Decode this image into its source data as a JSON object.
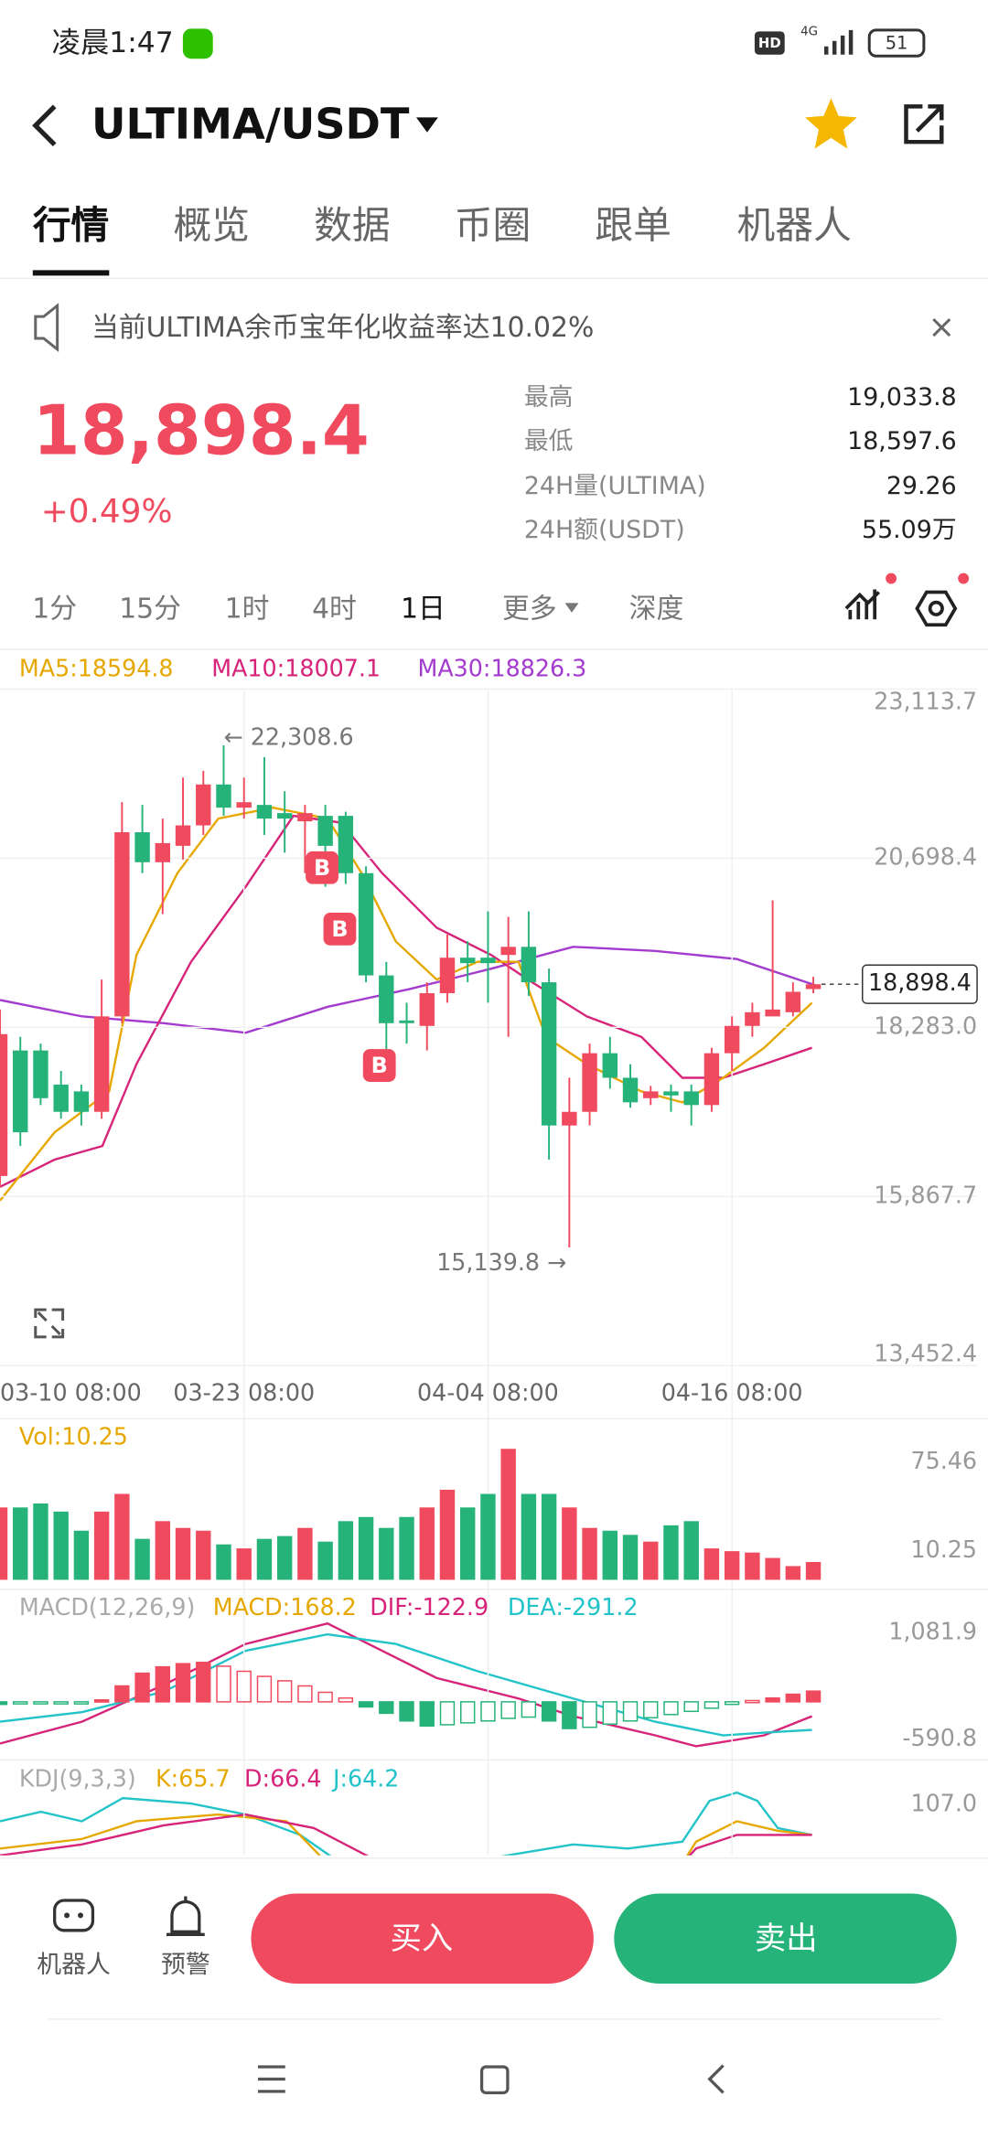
{
  "status": {
    "time": "凌晨1:47",
    "network": "4G",
    "badge": "HD",
    "battery": "51"
  },
  "header": {
    "pair": "ULTIMA/USDT"
  },
  "tabs": [
    "行情",
    "概览",
    "数据",
    "币圈",
    "跟单",
    "机器人"
  ],
  "notice": "当前ULTIMA余币宝年化收益率达10.02%",
  "ticker": {
    "price": "18,898.4",
    "change": "+0.49%",
    "stats": [
      {
        "label": "最高",
        "value": "19,033.8"
      },
      {
        "label": "最低",
        "value": "18,597.6"
      },
      {
        "label": "24H量(ULTIMA)",
        "value": "29.26"
      },
      {
        "label": "24H额(USDT)",
        "value": "55.09万"
      }
    ]
  },
  "intervals": [
    "1分",
    "15分",
    "1时",
    "4时",
    "1日",
    "更多",
    "深度"
  ],
  "chart_data": {
    "type": "candlestick",
    "up_color": "#f04a5e",
    "down_color": "#26b37a",
    "ma_legend": [
      {
        "text": "MA5:18594.8",
        "color": "#e6a800"
      },
      {
        "text": "MA10:18007.1",
        "color": "#d6247a"
      },
      {
        "text": "MA30:18826.3",
        "color": "#a43bcf"
      }
    ],
    "ylim": [
      13452.4,
      23113.7
    ],
    "yticks": [
      {
        "value": 23113.7,
        "label": "23,113.7"
      },
      {
        "value": 20698.4,
        "label": "20,698.4"
      },
      {
        "value": 18283.0,
        "label": "18,283.0"
      },
      {
        "value": 15867.7,
        "label": "15,867.7"
      },
      {
        "value": 13452.4,
        "label": "13,452.4"
      }
    ],
    "x_start_label": "03-10 08:00",
    "categories": [
      null,
      null,
      null,
      null,
      null,
      null,
      null,
      null,
      null,
      null,
      null,
      null,
      "03-23 08:00",
      null,
      null,
      null,
      null,
      null,
      null,
      null,
      null,
      null,
      null,
      null,
      "04-04 08:00",
      null,
      null,
      null,
      null,
      null,
      null,
      null,
      null,
      null,
      null,
      null,
      "04-16 08:00",
      null,
      null,
      null,
      null
    ],
    "candles": [
      [
        16160,
        18537,
        16004,
        18186
      ],
      [
        17952,
        18147,
        16589,
        16784
      ],
      [
        17952,
        18050,
        17173,
        17271
      ],
      [
        17465,
        17660,
        16978,
        17076
      ],
      [
        17368,
        17465,
        16881,
        17076
      ],
      [
        17076,
        18965,
        16978,
        18439
      ],
      [
        18439,
        21497,
        18342,
        21068
      ],
      [
        21068,
        21458,
        20484,
        20640
      ],
      [
        20640,
        21263,
        19900,
        20913
      ],
      [
        20874,
        21848,
        20679,
        21166
      ],
      [
        21166,
        21945,
        21030,
        21750
      ],
      [
        21750,
        22308.6,
        21302,
        21419
      ],
      [
        21419,
        21848,
        21263,
        21497
      ],
      [
        21458,
        22140,
        21030,
        21263
      ],
      [
        21341,
        21653,
        20776,
        21263
      ],
      [
        21224,
        21458,
        20484,
        21341
      ],
      [
        21302,
        21458,
        20290,
        20874
      ],
      [
        21302,
        21361,
        20329,
        20484
      ],
      [
        20484,
        20582,
        18926,
        19024
      ],
      [
        19024,
        19218,
        17757,
        18342
      ],
      [
        18381,
        18634,
        18050,
        18342
      ],
      [
        18303,
        18926,
        17952,
        18770
      ],
      [
        18770,
        19608,
        18634,
        19277
      ],
      [
        19277,
        19511,
        18926,
        19199
      ],
      [
        19277,
        19939,
        18634,
        19199
      ],
      [
        19316,
        19861,
        18147,
        19432
      ],
      [
        19432,
        19939,
        18731,
        18926
      ],
      [
        18926,
        19121,
        16394,
        16881
      ],
      [
        16881,
        17563,
        15139.8,
        17076
      ],
      [
        17076,
        18050,
        16881,
        17913
      ],
      [
        17913,
        18147,
        17407,
        17563
      ],
      [
        17563,
        17757,
        17134,
        17212
      ],
      [
        17271,
        17446,
        17173,
        17368
      ],
      [
        17368,
        17465,
        17076,
        17310
      ],
      [
        17368,
        17465,
        16881,
        17173
      ],
      [
        17173,
        17991,
        17076,
        17913
      ],
      [
        17913,
        18439,
        17660,
        18303
      ],
      [
        18303,
        18634,
        18147,
        18498
      ],
      [
        18439,
        20095,
        18439,
        18537
      ],
      [
        18498,
        18926,
        18439,
        18790
      ],
      [
        18829,
        19004,
        18770,
        18898.4
      ]
    ],
    "annotations": [
      {
        "value": 22308.6,
        "label": "22,308.6"
      },
      {
        "value": 15139.8,
        "label": "15,139.8"
      }
    ],
    "buy_markers": [
      "B",
      "B",
      "B"
    ],
    "volume": {
      "label": "Vol:10.25",
      "ylim": [
        0,
        75.46
      ],
      "yticks": [
        75.46,
        10.25
      ],
      "values": [
        41.7,
        41.7,
        44,
        39.3,
        28.3,
        39.3,
        49.5,
        23.6,
        33.8,
        29.9,
        28.3,
        20.4,
        18.1,
        23.6,
        25.2,
        29.9,
        22,
        33.8,
        36.2,
        29.9,
        36.2,
        41.7,
        51.9,
        41.7,
        49.5,
        75.46,
        49.5,
        49.5,
        41.7,
        29.9,
        28.3,
        25.9,
        22,
        31.4,
        33.8,
        18.1,
        16.5,
        15.7,
        12.6,
        7.9,
        10.25
      ]
    },
    "macd": {
      "labels": [
        {
          "text": "MACD(12,26,9)",
          "color": "#aaaaaa"
        },
        {
          "text": "MACD:168.2",
          "color": "#e6a800"
        },
        {
          "text": "DIF:-122.9",
          "color": "#d6247a"
        },
        {
          "text": "DEA:-291.2",
          "color": "#22c3c9"
        }
      ],
      "ylim": [
        -590.8,
        1081.9
      ],
      "yticks": [
        {
          "value": 1081.9,
          "label": "1,081.9"
        },
        -590.8
      ],
      "values": [
        -40,
        -30,
        -20,
        -15,
        -10,
        30,
        250,
        450,
        550,
        600,
        620,
        560,
        480,
        400,
        330,
        250,
        150,
        60,
        -80,
        -180,
        -300,
        -380,
        -360,
        -330,
        -300,
        -260,
        -240,
        -300,
        -420,
        -400,
        -350,
        -300,
        -250,
        -200,
        -150,
        -100,
        -40,
        20,
        60,
        120,
        168.2
      ]
    },
    "kdj": {
      "labels": [
        {
          "text": "KDJ(9,3,3)",
          "color": "#aaaaaa"
        },
        {
          "text": "K:65.7",
          "color": "#e6a800"
        },
        {
          "text": "D:66.4",
          "color": "#d6247a"
        },
        {
          "text": "J:64.2",
          "color": "#22c3c9"
        }
      ],
      "yticks": [
        {
          "value": 107,
          "label": "107.0"
        }
      ]
    }
  },
  "footer": {
    "robot": "机器人",
    "alert": "预警",
    "buy": "买入",
    "sell": "卖出"
  }
}
